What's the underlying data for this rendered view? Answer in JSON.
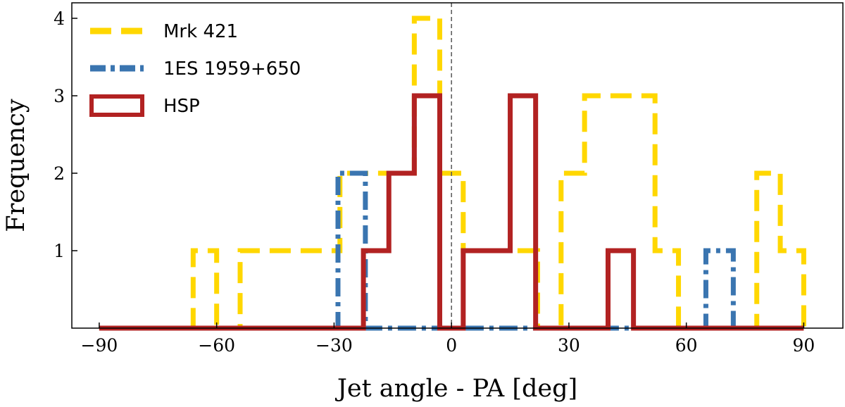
{
  "chart_data": {
    "type": "histogram-step",
    "xlabel": "Jet angle - PA [deg]",
    "ylabel": "Frequency",
    "xlim": [
      -97,
      100
    ],
    "ylim": [
      0,
      4.2
    ],
    "xticks": [
      -90,
      -60,
      -30,
      0,
      30,
      60,
      90
    ],
    "xtick_labels": [
      "−90",
      "−60",
      "−30",
      "0",
      "30",
      "60",
      "90"
    ],
    "yticks": [
      1,
      2,
      3,
      4
    ],
    "ytick_labels": [
      "1",
      "2",
      "3",
      "4"
    ],
    "reference_line_x": 0,
    "legend_position": "upper-left",
    "series": [
      {
        "name": "Mrk 421",
        "color": "#FFD700",
        "style": "dashed",
        "edges": [
          -90,
          -66,
          -60,
          -54,
          -28.5,
          -22,
          -16,
          -9.5,
          -3,
          3,
          16,
          22,
          28,
          34,
          40,
          46,
          52,
          58,
          65,
          72,
          78,
          84,
          90
        ],
        "counts": [
          0,
          1,
          0,
          1,
          2,
          2,
          2,
          4,
          2,
          1,
          1,
          0,
          2,
          3,
          3,
          3,
          1,
          0,
          0,
          0,
          2,
          1
        ]
      },
      {
        "name": "1ES 1959+650",
        "color": "#3A75B0",
        "style": "dashdot",
        "edges": [
          -90,
          -29,
          -22,
          65,
          72,
          90
        ],
        "counts": [
          0,
          2,
          0,
          1,
          0
        ]
      },
      {
        "name": "HSP",
        "color": "#B22222",
        "style": "solid",
        "edges": [
          -90,
          -22.5,
          -16,
          -9.5,
          -3,
          3,
          15,
          21.5,
          40,
          46.5,
          90
        ],
        "counts": [
          0,
          1,
          2,
          3,
          0,
          1,
          3,
          0,
          1,
          0
        ]
      }
    ]
  }
}
